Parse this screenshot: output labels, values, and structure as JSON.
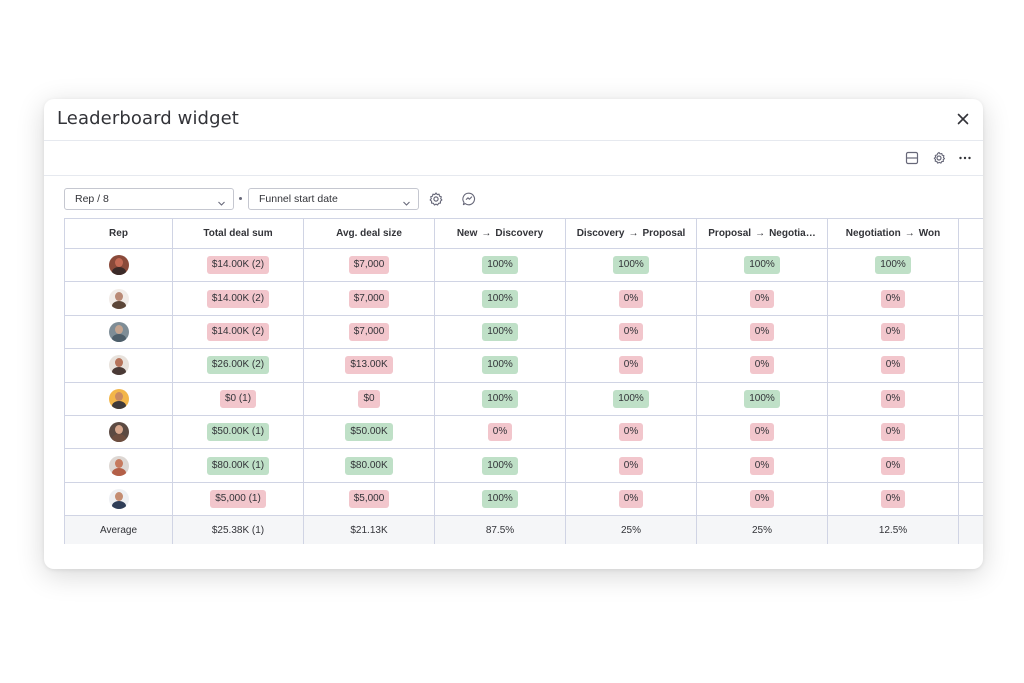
{
  "modal": {
    "title": "Leaderboard widget"
  },
  "toolbar": {
    "icons": [
      "layout-icon",
      "gear-icon",
      "more-icon"
    ]
  },
  "filters": {
    "group_by": "Rep / 8",
    "date_field": "Funnel start date"
  },
  "table": {
    "headers": {
      "rep": "Rep",
      "total": "Total deal sum",
      "avg": "Avg. deal size",
      "s1_from": "New",
      "s1_to": "Discovery",
      "s2_from": "Discovery",
      "s2_to": "Proposal",
      "s3_from": "Proposal",
      "s3_to": "Negotia…",
      "s4_from": "Negotiation",
      "s4_to": "Won",
      "arrow": "→"
    },
    "rows": [
      {
        "avatar_colors": [
          "#8a4a3a",
          "#c46a55",
          "#3b2a28"
        ],
        "total": "$14.00K (2)",
        "total_status": "bad",
        "avg": "$7,000",
        "avg_status": "bad",
        "s1": "100%",
        "s1_status": "good",
        "s2": "100%",
        "s2_status": "good",
        "s3": "100%",
        "s3_status": "good",
        "s4": "100%",
        "s4_status": "good"
      },
      {
        "avatar_colors": [
          "#f1ece8",
          "#b98a76",
          "#5b4638"
        ],
        "total": "$14.00K (2)",
        "total_status": "bad",
        "avg": "$7,000",
        "avg_status": "bad",
        "s1": "100%",
        "s1_status": "good",
        "s2": "0%",
        "s2_status": "bad",
        "s3": "0%",
        "s3_status": "bad",
        "s4": "0%",
        "s4_status": "bad"
      },
      {
        "avatar_colors": [
          "#7e8d96",
          "#c4a48f",
          "#4e5f6a"
        ],
        "total": "$14.00K (2)",
        "total_status": "bad",
        "avg": "$7,000",
        "avg_status": "bad",
        "s1": "100%",
        "s1_status": "good",
        "s2": "0%",
        "s2_status": "bad",
        "s3": "0%",
        "s3_status": "bad",
        "s4": "0%",
        "s4_status": "bad"
      },
      {
        "avatar_colors": [
          "#e8e2dc",
          "#b5735a",
          "#4a3a36"
        ],
        "total": "$26.00K (2)",
        "total_status": "good",
        "avg": "$13.00K",
        "avg_status": "bad",
        "s1": "100%",
        "s1_status": "good",
        "s2": "0%",
        "s2_status": "bad",
        "s3": "0%",
        "s3_status": "bad",
        "s4": "0%",
        "s4_status": "bad"
      },
      {
        "avatar_colors": [
          "#f3b64a",
          "#c98a62",
          "#3f3a3a"
        ],
        "total": "$0 (1)",
        "total_status": "bad",
        "avg": "$0",
        "avg_status": "bad",
        "s1": "100%",
        "s1_status": "good",
        "s2": "100%",
        "s2_status": "good",
        "s3": "100%",
        "s3_status": "good",
        "s4": "0%",
        "s4_status": "bad"
      },
      {
        "avatar_colors": [
          "#5b4a42",
          "#d7a78d",
          "#6e4e3f"
        ],
        "total": "$50.00K (1)",
        "total_status": "good",
        "avg": "$50.00K",
        "avg_status": "good",
        "s1": "0%",
        "s1_status": "bad",
        "s2": "0%",
        "s2_status": "bad",
        "s3": "0%",
        "s3_status": "bad",
        "s4": "0%",
        "s4_status": "bad"
      },
      {
        "avatar_colors": [
          "#ddd7d3",
          "#c67a5e",
          "#b35f47"
        ],
        "total": "$80.00K (1)",
        "total_status": "good",
        "avg": "$80.00K",
        "avg_status": "good",
        "s1": "100%",
        "s1_status": "good",
        "s2": "0%",
        "s2_status": "bad",
        "s3": "0%",
        "s3_status": "bad",
        "s4": "0%",
        "s4_status": "bad"
      },
      {
        "avatar_colors": [
          "#eef0f3",
          "#c48d72",
          "#2f3d57"
        ],
        "total": "$5,000 (1)",
        "total_status": "bad",
        "avg": "$5,000",
        "avg_status": "bad",
        "s1": "100%",
        "s1_status": "good",
        "s2": "0%",
        "s2_status": "bad",
        "s3": "0%",
        "s3_status": "bad",
        "s4": "0%",
        "s4_status": "bad"
      }
    ],
    "average": {
      "label": "Average",
      "total": "$25.38K (1)",
      "avg": "$21.13K",
      "s1": "87.5%",
      "s2": "25%",
      "s3": "25%",
      "s4": "12.5%"
    }
  },
  "colors": {
    "good": "#bfe0c7",
    "bad": "#f2c6cc",
    "border": "#d0d4e4",
    "avg_row_bg": "#f5f6f8"
  }
}
